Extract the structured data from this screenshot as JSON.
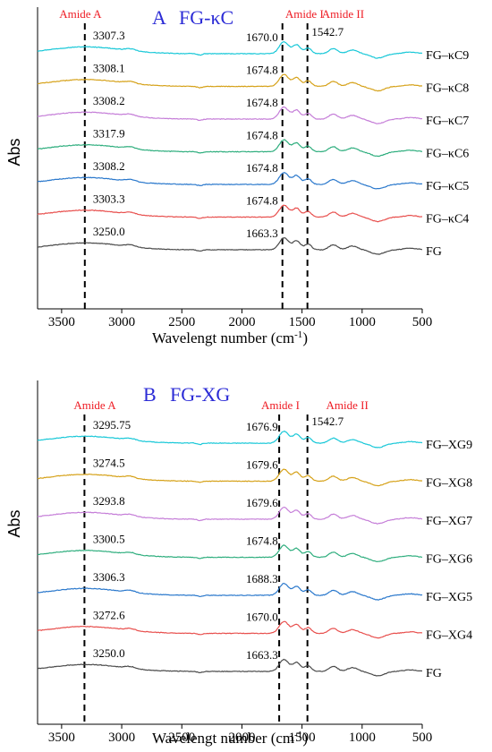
{
  "chart_data": [
    {
      "type": "line",
      "panel_letter": "A",
      "title": "FG-κC",
      "xlabel_main": "Wavelengt number (cm",
      "xlabel_sup": "-1",
      "xlabel_tail": ")",
      "ylabel": "Abs",
      "xlim": [
        3700,
        500
      ],
      "x_reversed": true,
      "grid": false,
      "x_ticks": [
        3500,
        3000,
        2500,
        2000,
        1500,
        1000,
        500
      ],
      "x_tick_labels": [
        "3500",
        "3000",
        "2500",
        "2000",
        "1500",
        "1000",
        "500"
      ],
      "region_labels": [
        {
          "text": "Amide A",
          "x": 3520
        },
        {
          "text": "Amide I",
          "x": 1640
        },
        {
          "text": "Amide II",
          "x": 1335
        }
      ],
      "dashed_lines": [
        3307,
        1663,
        1455
      ],
      "annotation_color": "#ee1c24",
      "title_color": "#2b2bd6",
      "series": [
        {
          "name": "FG–κC9",
          "color": "#19c8d8",
          "level": 6.3,
          "band_label": "3307.3",
          "amide1_label": "1670.0",
          "amide2_label": "1542.7"
        },
        {
          "name": "FG–κC8",
          "color": "#d6a21a",
          "level": 5.3,
          "band_label": "3308.1",
          "amide1_label": "1674.8"
        },
        {
          "name": "FG–κC7",
          "color": "#c57ed8",
          "level": 4.4,
          "band_label": "3308.2",
          "amide1_label": "1674.8"
        },
        {
          "name": "FG–κC6",
          "color": "#2fae7e",
          "level": 3.6,
          "band_label": "3317.9",
          "amide1_label": "1674.8"
        },
        {
          "name": "FG–κC5",
          "color": "#2a78cc",
          "level": 2.7,
          "band_label": "3308.2",
          "amide1_label": "1674.8"
        },
        {
          "name": "FG–κC4",
          "color": "#e8504e",
          "level": 1.8,
          "band_label": "3303.3",
          "amide1_label": "1674.8"
        },
        {
          "name": "FG",
          "color": "#4a4a4a",
          "level": 0.2,
          "band_label": "3250.0",
          "amide1_label": "1663.3"
        }
      ]
    },
    {
      "type": "line",
      "panel_letter": "B",
      "title": "FG-XG",
      "xlabel_main": "Wavelengt number (cm",
      "xlabel_sup": "-1",
      "xlabel_tail": ")",
      "ylabel": "Abs",
      "xlim": [
        3700,
        500
      ],
      "x_reversed": true,
      "grid": false,
      "x_ticks": [
        3500,
        3000,
        2500,
        2000,
        1500,
        1000,
        500
      ],
      "x_tick_labels": [
        "3500",
        "3000",
        "2500",
        "2000",
        "1500",
        "1000",
        "500"
      ],
      "region_labels": [
        {
          "text": "Amide A",
          "x": 3400
        },
        {
          "text": "Amide I",
          "x": 1840
        },
        {
          "text": "Amide II",
          "x": 1300
        }
      ],
      "dashed_lines": [
        3310,
        1690,
        1455
      ],
      "annotation_color": "#ee1c24",
      "title_color": "#2b2bd6",
      "series": [
        {
          "name": "FG–XG9",
          "color": "#19c8d8",
          "level": 6.3,
          "band_label": "3295.75",
          "amide1_label": "1676.9",
          "amide2_label": "1542.7"
        },
        {
          "name": "FG–XG8",
          "color": "#d6a21a",
          "level": 5.4,
          "band_label": "3274.5",
          "amide1_label": "1679.6"
        },
        {
          "name": "FG–XG7",
          "color": "#c57ed8",
          "level": 4.5,
          "band_label": "3293.8",
          "amide1_label": "1679.6"
        },
        {
          "name": "FG–XG6",
          "color": "#2fae7e",
          "level": 3.4,
          "band_label": "3300.5",
          "amide1_label": "1674.8"
        },
        {
          "name": "FG–XG5",
          "color": "#2a78cc",
          "level": 2.4,
          "band_label": "3306.3",
          "amide1_label": "1688.3"
        },
        {
          "name": "FG–XG4",
          "color": "#e8504e",
          "level": 1.2,
          "band_label": "3272.6",
          "amide1_label": "1670.0"
        },
        {
          "name": "FG",
          "color": "#4a4a4a",
          "level": 0.2,
          "band_label": "3250.0",
          "amide1_label": "1663.3"
        }
      ]
    }
  ]
}
